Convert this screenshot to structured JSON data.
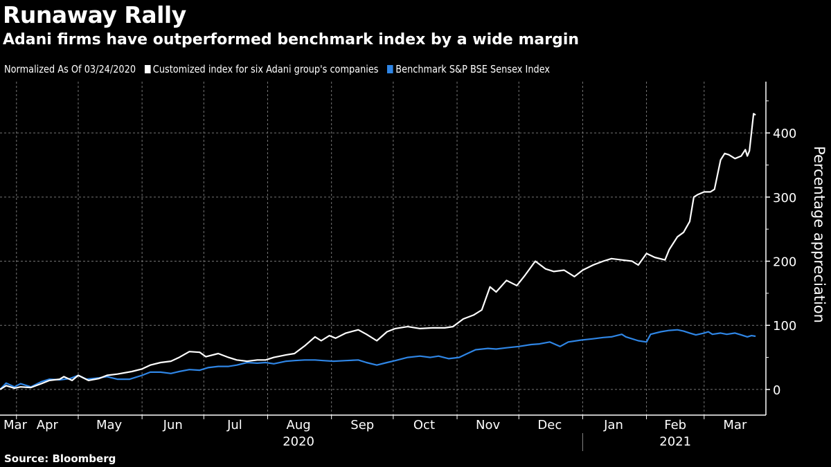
{
  "header": {
    "title": "Runaway Rally",
    "subtitle": "Adani firms have outperformed benchmark index by a wide margin"
  },
  "legend": {
    "note": "Normalized As Of 03/24/2020",
    "items": [
      {
        "label": "Customized index for six Adani group's companies",
        "color": "#ffffff"
      },
      {
        "label": "Benchmark S&P BSE Sensex Index",
        "color": "#2f86e6"
      }
    ]
  },
  "footer": {
    "source": "Source: Bloomberg"
  },
  "chart_data": {
    "type": "line",
    "title": "Runaway Rally",
    "subtitle": "Adani firms have outperformed benchmark index by a wide margin",
    "ylabel": "Percentage appreciation",
    "xlabel": "",
    "xlim": [
      "2020-03-24",
      "2021-03-31"
    ],
    "ylim": [
      -40,
      480
    ],
    "yticks": [
      0,
      100,
      200,
      300,
      400
    ],
    "y_axis_side": "right",
    "grid": true,
    "legend_position": "top-left",
    "x_tick_labels": [
      {
        "label": "Mar",
        "date": "2020-03-24"
      },
      {
        "label": "Apr",
        "date": "2020-04-16"
      },
      {
        "label": "May",
        "date": "2020-05-16"
      },
      {
        "label": "Jun",
        "date": "2020-06-16"
      },
      {
        "label": "Jul",
        "date": "2020-07-16"
      },
      {
        "label": "Aug",
        "date": "2020-08-16"
      },
      {
        "label": "Sep",
        "date": "2020-09-16"
      },
      {
        "label": "Oct",
        "date": "2020-10-16"
      },
      {
        "label": "Nov",
        "date": "2020-11-16"
      },
      {
        "label": "Dec",
        "date": "2020-12-16"
      },
      {
        "label": "Jan",
        "date": "2021-01-16"
      },
      {
        "label": "Feb",
        "date": "2021-02-15"
      },
      {
        "label": "Mar",
        "date": "2021-03-16"
      }
    ],
    "month_boundaries": [
      "2020-04-01",
      "2020-05-01",
      "2020-06-01",
      "2020-07-01",
      "2020-08-01",
      "2020-09-01",
      "2020-10-01",
      "2020-11-01",
      "2020-12-01",
      "2021-01-01",
      "2021-02-01",
      "2021-03-01"
    ],
    "year_labels": [
      {
        "label": "2020",
        "date": "2020-08-16"
      },
      {
        "label": "2021",
        "date": "2021-02-15"
      }
    ],
    "year_separator": "2021-01-01",
    "series": [
      {
        "name": "Customized index for six Adani group's companies",
        "color": "#ffffff",
        "points": [
          [
            "2020-03-24",
            0
          ],
          [
            "2020-03-27",
            6
          ],
          [
            "2020-03-31",
            2
          ],
          [
            "2020-04-03",
            4
          ],
          [
            "2020-04-08",
            3
          ],
          [
            "2020-04-13",
            9
          ],
          [
            "2020-04-17",
            14
          ],
          [
            "2020-04-22",
            16
          ],
          [
            "2020-04-24",
            20
          ],
          [
            "2020-04-28",
            14
          ],
          [
            "2020-05-01",
            22
          ],
          [
            "2020-05-06",
            14
          ],
          [
            "2020-05-11",
            17
          ],
          [
            "2020-05-15",
            22
          ],
          [
            "2020-05-20",
            24
          ],
          [
            "2020-05-27",
            28
          ],
          [
            "2020-06-01",
            32
          ],
          [
            "2020-06-05",
            38
          ],
          [
            "2020-06-10",
            42
          ],
          [
            "2020-06-15",
            44
          ],
          [
            "2020-06-19",
            50
          ],
          [
            "2020-06-24",
            59
          ],
          [
            "2020-06-29",
            58
          ],
          [
            "2020-07-02",
            51
          ],
          [
            "2020-07-08",
            56
          ],
          [
            "2020-07-13",
            50
          ],
          [
            "2020-07-17",
            46
          ],
          [
            "2020-07-22",
            44
          ],
          [
            "2020-07-27",
            46
          ],
          [
            "2020-07-31",
            46
          ],
          [
            "2020-08-04",
            50
          ],
          [
            "2020-08-10",
            54
          ],
          [
            "2020-08-14",
            56
          ],
          [
            "2020-08-19",
            68
          ],
          [
            "2020-08-24",
            82
          ],
          [
            "2020-08-27",
            76
          ],
          [
            "2020-08-31",
            84
          ],
          [
            "2020-09-03",
            80
          ],
          [
            "2020-09-08",
            88
          ],
          [
            "2020-09-14",
            93
          ],
          [
            "2020-09-18",
            86
          ],
          [
            "2020-09-23",
            76
          ],
          [
            "2020-09-28",
            90
          ],
          [
            "2020-10-02",
            95
          ],
          [
            "2020-10-08",
            98
          ],
          [
            "2020-10-14",
            95
          ],
          [
            "2020-10-20",
            96
          ],
          [
            "2020-10-26",
            96
          ],
          [
            "2020-10-30",
            98
          ],
          [
            "2020-11-04",
            110
          ],
          [
            "2020-11-09",
            116
          ],
          [
            "2020-11-13",
            124
          ],
          [
            "2020-11-17",
            160
          ],
          [
            "2020-11-20",
            152
          ],
          [
            "2020-11-25",
            170
          ],
          [
            "2020-11-30",
            162
          ],
          [
            "2020-12-04",
            178
          ],
          [
            "2020-12-09",
            200
          ],
          [
            "2020-12-14",
            188
          ],
          [
            "2020-12-18",
            184
          ],
          [
            "2020-12-23",
            186
          ],
          [
            "2020-12-28",
            176
          ],
          [
            "2021-01-01",
            186
          ],
          [
            "2021-01-06",
            194
          ],
          [
            "2021-01-11",
            200
          ],
          [
            "2021-01-15",
            204
          ],
          [
            "2021-01-20",
            202
          ],
          [
            "2021-01-25",
            200
          ],
          [
            "2021-01-28",
            194
          ],
          [
            "2021-02-01",
            212
          ],
          [
            "2021-02-05",
            206
          ],
          [
            "2021-02-10",
            202
          ],
          [
            "2021-02-12",
            218
          ],
          [
            "2021-02-16",
            238
          ],
          [
            "2021-02-19",
            245
          ],
          [
            "2021-02-22",
            262
          ],
          [
            "2021-02-24",
            300
          ],
          [
            "2021-02-26",
            304
          ],
          [
            "2021-03-01",
            308
          ],
          [
            "2021-03-04",
            308
          ],
          [
            "2021-03-06",
            312
          ],
          [
            "2021-03-09",
            358
          ],
          [
            "2021-03-11",
            368
          ],
          [
            "2021-03-13",
            366
          ],
          [
            "2021-03-16",
            360
          ],
          [
            "2021-03-19",
            364
          ],
          [
            "2021-03-21",
            374
          ],
          [
            "2021-03-22",
            364
          ],
          [
            "2021-03-23",
            372
          ],
          [
            "2021-03-25",
            430
          ],
          [
            "2021-03-26",
            428
          ]
        ]
      },
      {
        "name": "Benchmark S&P BSE Sensex Index",
        "color": "#2f86e6",
        "points": [
          [
            "2020-03-24",
            0
          ],
          [
            "2020-03-27",
            10
          ],
          [
            "2020-03-31",
            4
          ],
          [
            "2020-04-03",
            9
          ],
          [
            "2020-04-08",
            4
          ],
          [
            "2020-04-13",
            12
          ],
          [
            "2020-04-17",
            16
          ],
          [
            "2020-04-22",
            15
          ],
          [
            "2020-04-27",
            17
          ],
          [
            "2020-05-01",
            22
          ],
          [
            "2020-05-05",
            16
          ],
          [
            "2020-05-11",
            18
          ],
          [
            "2020-05-15",
            20
          ],
          [
            "2020-05-20",
            16
          ],
          [
            "2020-05-26",
            16
          ],
          [
            "2020-06-01",
            22
          ],
          [
            "2020-06-05",
            27
          ],
          [
            "2020-06-10",
            27
          ],
          [
            "2020-06-15",
            25
          ],
          [
            "2020-06-19",
            28
          ],
          [
            "2020-06-24",
            31
          ],
          [
            "2020-06-29",
            30
          ],
          [
            "2020-07-03",
            34
          ],
          [
            "2020-07-08",
            36
          ],
          [
            "2020-07-13",
            36
          ],
          [
            "2020-07-17",
            38
          ],
          [
            "2020-07-22",
            42
          ],
          [
            "2020-07-27",
            41
          ],
          [
            "2020-07-31",
            42
          ],
          [
            "2020-08-04",
            40
          ],
          [
            "2020-08-10",
            44
          ],
          [
            "2020-08-14",
            45
          ],
          [
            "2020-08-19",
            46
          ],
          [
            "2020-08-24",
            46
          ],
          [
            "2020-08-28",
            45
          ],
          [
            "2020-09-02",
            44
          ],
          [
            "2020-09-08",
            45
          ],
          [
            "2020-09-14",
            46
          ],
          [
            "2020-09-18",
            42
          ],
          [
            "2020-09-23",
            38
          ],
          [
            "2020-09-28",
            42
          ],
          [
            "2020-10-02",
            45
          ],
          [
            "2020-10-08",
            50
          ],
          [
            "2020-10-14",
            52
          ],
          [
            "2020-10-19",
            50
          ],
          [
            "2020-10-23",
            52
          ],
          [
            "2020-10-28",
            48
          ],
          [
            "2020-11-02",
            50
          ],
          [
            "2020-11-06",
            56
          ],
          [
            "2020-11-10",
            62
          ],
          [
            "2020-11-16",
            64
          ],
          [
            "2020-11-20",
            63
          ],
          [
            "2020-11-25",
            65
          ],
          [
            "2020-12-01",
            67
          ],
          [
            "2020-12-07",
            70
          ],
          [
            "2020-12-11",
            71
          ],
          [
            "2020-12-16",
            74
          ],
          [
            "2020-12-21",
            67
          ],
          [
            "2020-12-25",
            74
          ],
          [
            "2020-12-31",
            77
          ],
          [
            "2021-01-06",
            79
          ],
          [
            "2021-01-11",
            81
          ],
          [
            "2021-01-15",
            82
          ],
          [
            "2021-01-20",
            86
          ],
          [
            "2021-01-22",
            82
          ],
          [
            "2021-01-28",
            76
          ],
          [
            "2021-02-01",
            74
          ],
          [
            "2021-02-03",
            86
          ],
          [
            "2021-02-08",
            90
          ],
          [
            "2021-02-12",
            92
          ],
          [
            "2021-02-16",
            93
          ],
          [
            "2021-02-19",
            91
          ],
          [
            "2021-02-22",
            88
          ],
          [
            "2021-02-25",
            85
          ],
          [
            "2021-03-01",
            88
          ],
          [
            "2021-03-03",
            90
          ],
          [
            "2021-03-05",
            86
          ],
          [
            "2021-03-09",
            88
          ],
          [
            "2021-03-12",
            86
          ],
          [
            "2021-03-16",
            88
          ],
          [
            "2021-03-19",
            85
          ],
          [
            "2021-03-22",
            82
          ],
          [
            "2021-03-24",
            84
          ],
          [
            "2021-03-26",
            83
          ]
        ]
      }
    ]
  }
}
